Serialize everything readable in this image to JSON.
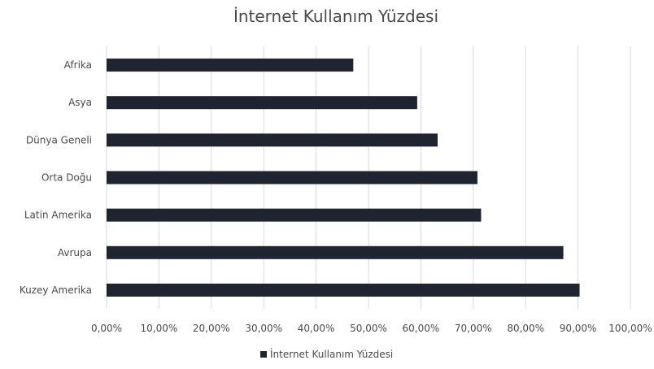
{
  "chart_data": {
    "type": "bar",
    "orientation": "horizontal",
    "title": "İnternet Kullanım Yüzdesi",
    "categories": [
      "Afrika",
      "Asya",
      "Dünya Geneli",
      "Orta Doğu",
      "Latin Amerika",
      "Avrupa",
      "Kuzey Amerika"
    ],
    "series": [
      {
        "name": "İnternet Kullanım Yüzdesi",
        "values": [
          47.1,
          59.3,
          63.2,
          70.8,
          71.5,
          87.2,
          90.3
        ]
      }
    ],
    "xlim": [
      0,
      100
    ],
    "x_ticks": [
      0,
      10,
      20,
      30,
      40,
      50,
      60,
      70,
      80,
      90,
      100
    ],
    "x_tick_labels": [
      "0,00%",
      "10,00%",
      "20,00%",
      "30,00%",
      "40,00%",
      "50,00%",
      "60,00%",
      "70,00%",
      "80,00%",
      "90,00%",
      "100,00%"
    ],
    "grid": true,
    "legend": "bottom",
    "colors": {
      "bar": "#1f2430",
      "grid": "#d9d9d9",
      "text": "#4a4a4a"
    }
  }
}
